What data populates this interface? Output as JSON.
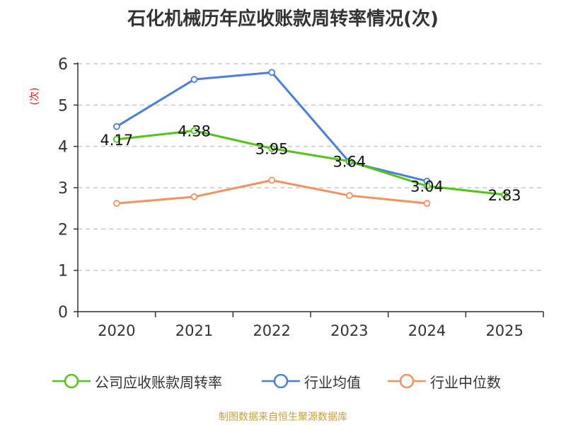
{
  "chart_data": {
    "type": "line",
    "title": "石化机械历年应收账款周转率情况(次)",
    "ylabel": "(次)",
    "xlabel": "",
    "categories": [
      "2020",
      "2021",
      "2022",
      "2023",
      "2024",
      "2025"
    ],
    "ylim": [
      0,
      6
    ],
    "yticks": [
      0,
      1,
      2,
      3,
      4,
      5,
      6
    ],
    "grid": true,
    "legend_position": "bottom",
    "series": [
      {
        "name": "公司应收账款周转率",
        "color": "#52c41a",
        "values": [
          4.17,
          4.38,
          3.95,
          3.64,
          3.04,
          2.83
        ],
        "labels": [
          "4.17",
          "4.38",
          "3.95",
          "3.64",
          "3.04",
          "2.83"
        ]
      },
      {
        "name": "行业均值",
        "color": "#4a7fdb",
        "values": [
          4.48,
          5.62,
          5.79,
          3.62,
          3.16,
          null
        ]
      },
      {
        "name": "行业中位数",
        "color": "#f5915e",
        "values": [
          2.62,
          2.78,
          3.18,
          2.81,
          2.62,
          null
        ]
      }
    ]
  },
  "source": "制图数据来自恒生聚源数据库"
}
